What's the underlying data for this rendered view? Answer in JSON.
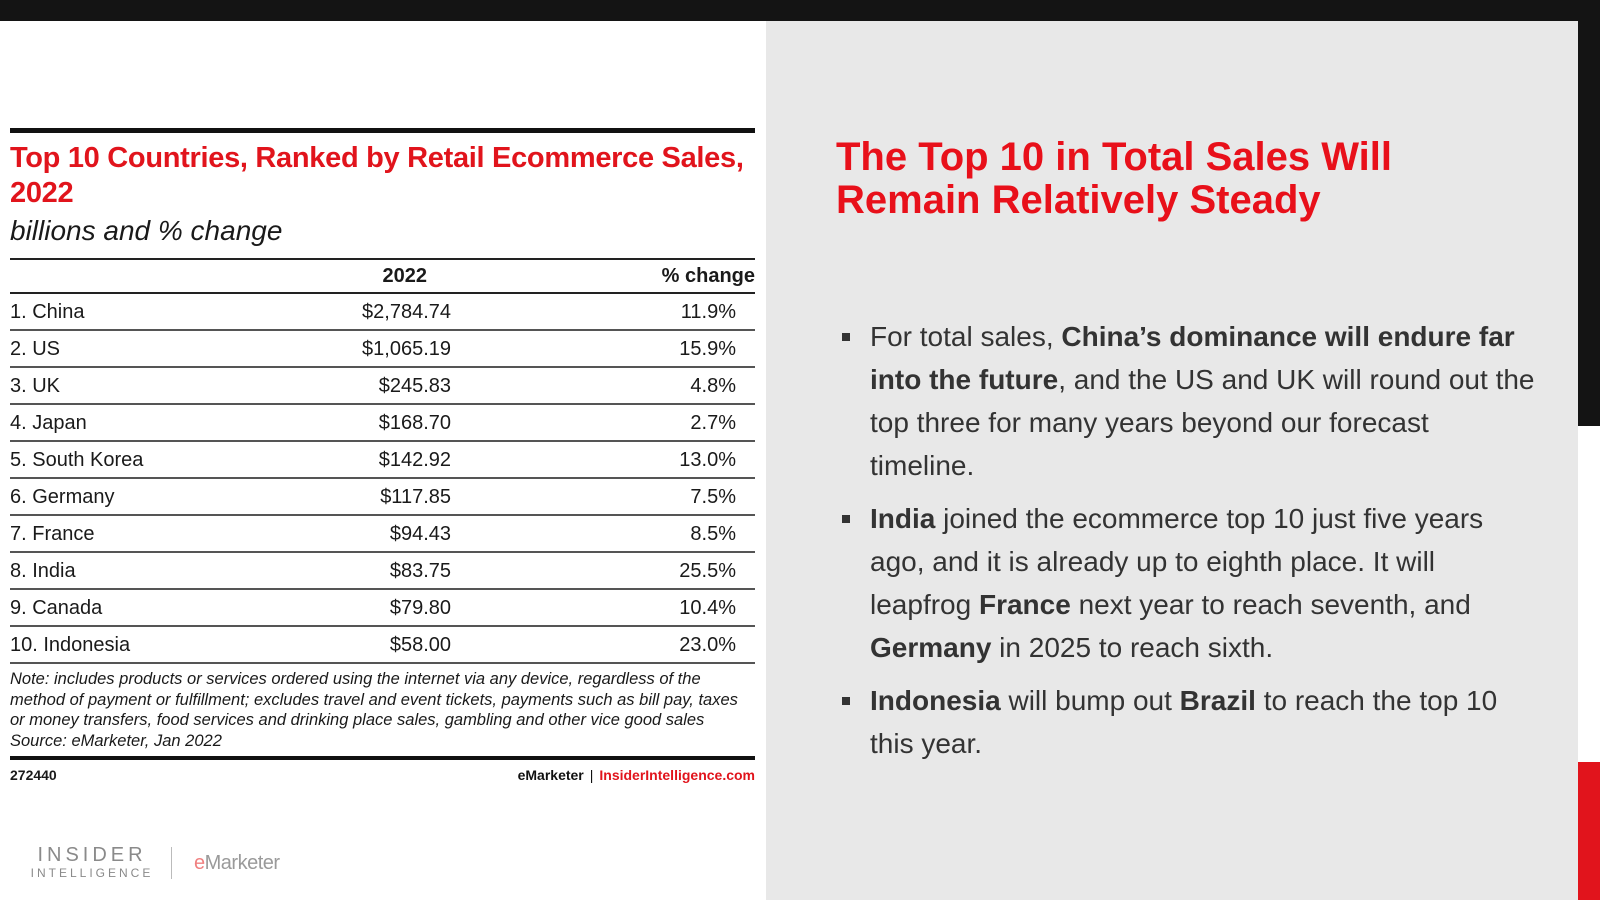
{
  "chart": {
    "title": "Top 10 Countries, Ranked by Retail Ecommerce Sales, 2022",
    "subtitle": "billions and % change",
    "columns": [
      "",
      "2022",
      "% change"
    ],
    "rows": [
      {
        "name": "1. China",
        "value": "$2,784.74",
        "change": "11.9%"
      },
      {
        "name": "2. US",
        "value": "$1,065.19",
        "change": "15.9%"
      },
      {
        "name": "3. UK",
        "value": "$245.83",
        "change": "4.8%"
      },
      {
        "name": "4. Japan",
        "value": "$168.70",
        "change": "2.7%"
      },
      {
        "name": "5. South Korea",
        "value": "$142.92",
        "change": "13.0%"
      },
      {
        "name": "6. Germany",
        "value": "$117.85",
        "change": "7.5%"
      },
      {
        "name": "7. France",
        "value": "$94.43",
        "change": "8.5%"
      },
      {
        "name": "8. India",
        "value": "$83.75",
        "change": "25.5%"
      },
      {
        "name": "9. Canada",
        "value": "$79.80",
        "change": "10.4%"
      },
      {
        "name": "10. Indonesia",
        "value": "$58.00",
        "change": "23.0%"
      }
    ],
    "note": "Note: includes products or services ordered using the internet via any device, regardless of the method of payment or fulfillment; excludes travel and event tickets, payments such as bill pay, taxes or money transfers, food services and drinking place sales, gambling and other vice good sales",
    "source": "Source: eMarketer, Jan 2022",
    "footer_id": "272440",
    "footer_brand": "eMarketer",
    "footer_separator": "|",
    "footer_site": "InsiderIntelligence.com"
  },
  "logo": {
    "line1": "INSIDER",
    "line2": "INTELLIGENCE",
    "em_e": "e",
    "em_rest": "Marketer"
  },
  "headline": "The Top 10 in Total Sales Will Remain Relatively Steady",
  "bullets": [
    {
      "parts": [
        {
          "text": "For total sales, ",
          "bold": false
        },
        {
          "text": "China’s dominance will endure far into the future",
          "bold": true
        },
        {
          "text": ", and the US and UK will round out the top three for many years beyond our forecast timeline.",
          "bold": false
        }
      ]
    },
    {
      "parts": [
        {
          "text": "India",
          "bold": true
        },
        {
          "text": " joined the ecommerce top 10 just five years ago, and it is already up to eighth place. It will leapfrog ",
          "bold": false
        },
        {
          "text": "France",
          "bold": true
        },
        {
          "text": " next year to reach seventh, and ",
          "bold": false
        },
        {
          "text": "Germany",
          "bold": true
        },
        {
          "text": " in 2025 to reach sixth.",
          "bold": false
        }
      ]
    },
    {
      "parts": [
        {
          "text": "Indonesia",
          "bold": true
        },
        {
          "text": " will bump out ",
          "bold": false
        },
        {
          "text": "Brazil",
          "bold": true
        },
        {
          "text": " to reach the top 10 this year.",
          "bold": false
        }
      ]
    }
  ],
  "colors": {
    "accent_red": "#e1141c",
    "dark": "#141414",
    "panel_gray": "#e8e8e8"
  }
}
